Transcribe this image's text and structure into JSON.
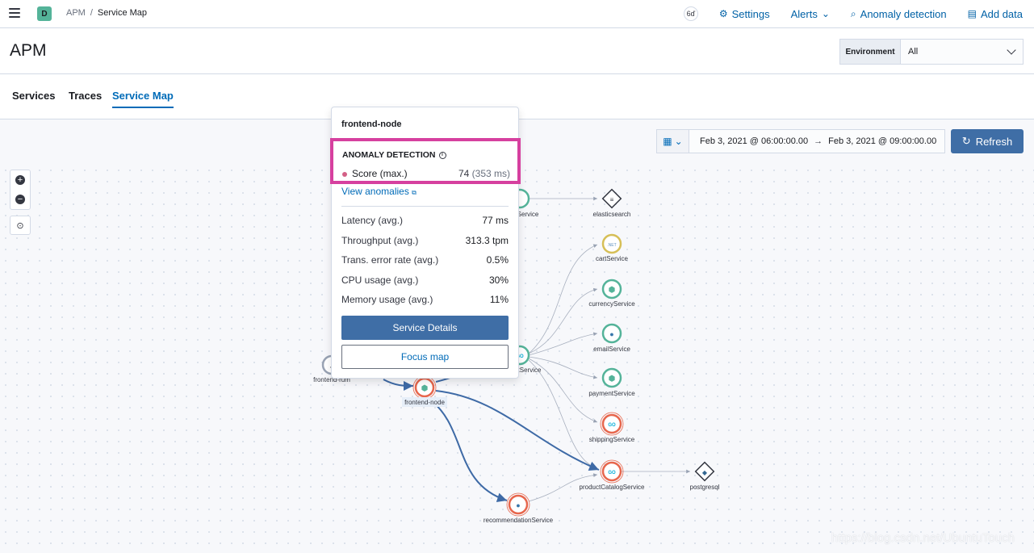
{
  "header": {
    "space_letter": "D",
    "breadcrumbs": [
      "APM",
      "/",
      "Service Map"
    ],
    "settings_label": "Settings",
    "alerts_label": "Alerts",
    "anomaly_label": "Anomaly detection",
    "add_data_label": "Add data",
    "help_glyph": "6ď"
  },
  "page": {
    "title": "APM",
    "environment_label": "Environment",
    "environment_value": "All"
  },
  "tabs": [
    {
      "label": "Services"
    },
    {
      "label": "Traces"
    },
    {
      "label": "Service Map",
      "active": true
    }
  ],
  "datepicker": {
    "start": "Feb 3, 2021 @ 06:00:00.00",
    "arrow": "→",
    "end": "Feb 3, 2021 @ 09:00:00.00",
    "refresh_label": "Refresh"
  },
  "zoom": {
    "plus": "+",
    "minus": "−"
  },
  "map": {
    "nodes": [
      {
        "id": "elasticsearch",
        "label": "elasticsearch",
        "badge": "≡",
        "kind": "db"
      },
      {
        "id": "cart",
        "label": "cartService",
        "badge": ".NET",
        "kind": "svc",
        "ring": "#d6bf57"
      },
      {
        "id": "currency",
        "label": "currencyService",
        "badge": "⬢",
        "kind": "svc",
        "ring": "#54b399"
      },
      {
        "id": "email",
        "label": "emailService",
        "badge": "🐍",
        "kind": "svc",
        "ring": "#54b399"
      },
      {
        "id": "payment",
        "label": "paymentService",
        "badge": "⬢",
        "kind": "svc",
        "ring": "#54b399"
      },
      {
        "id": "shipping",
        "label": "shippingService",
        "badge": "GO",
        "kind": "svc",
        "ring": "#e7664c"
      },
      {
        "id": "productCatalog",
        "label": "productCatalogService",
        "badge": "GO",
        "kind": "svc",
        "ring": "#e7664c"
      },
      {
        "id": "postgresql",
        "label": "postgresql",
        "badge": "🐘",
        "kind": "db"
      },
      {
        "id": "recommendation",
        "label": "recommendationService",
        "badge": "🐍",
        "kind": "svc",
        "ring": "#e7664c"
      },
      {
        "id": "frontendNode",
        "label": "frontend-node",
        "badge": "⬢",
        "kind": "svc",
        "ring": "#e7664c"
      },
      {
        "id": "frontendRum",
        "label": "frontend-rum",
        "badge": "J",
        "kind": "svc",
        "ring": "#98a2b3"
      },
      {
        "id": "checkout",
        "label": "tService",
        "badge": "GO",
        "kind": "svc",
        "ring": "#54b399"
      },
      {
        "id": "topService",
        "label": "Service",
        "badge": "",
        "kind": "svc",
        "ring": "#54b399"
      }
    ]
  },
  "popover": {
    "title": "frontend-node",
    "anomaly_heading": "ANOMALY DETECTION",
    "info_glyph": "i",
    "score_label": "Score (max.)",
    "score_value": "74",
    "score_detail": "(353 ms)",
    "view_anomalies": "View anomalies",
    "external_glyph": "⧉",
    "metrics": [
      {
        "label": "Latency (avg.)",
        "value": "77 ms"
      },
      {
        "label": "Throughput (avg.)",
        "value": "313.3 tpm"
      },
      {
        "label": "Trans. error rate (avg.)",
        "value": "0.5%"
      },
      {
        "label": "CPU usage (avg.)",
        "value": "30%"
      },
      {
        "label": "Memory usage (avg.)",
        "value": "11%"
      }
    ],
    "service_details_label": "Service Details",
    "focus_map_label": "Focus map"
  },
  "watermark": "https://blog.csdn.net/UbuntuTouch",
  "colors": {
    "accent": "#006bb8",
    "primary_button": "#3f6ea6",
    "highlight_box": "#d6409f",
    "edge_highlight": "#3e6aa6"
  }
}
